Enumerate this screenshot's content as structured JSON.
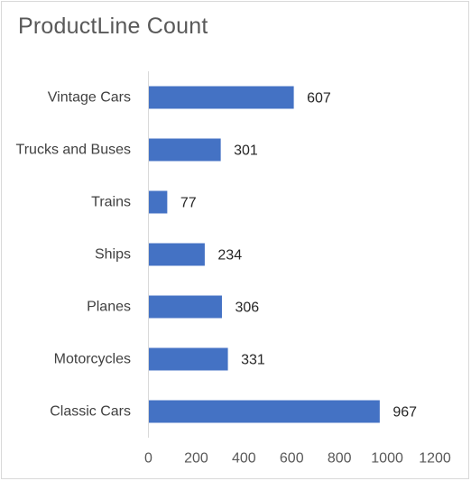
{
  "chart_data": {
    "type": "bar",
    "orientation": "horizontal",
    "title": "ProductLine Count",
    "xlabel": "",
    "ylabel": "",
    "categories": [
      "Vintage Cars",
      "Trucks and Buses",
      "Trains",
      "Ships",
      "Planes",
      "Motorcycles",
      "Classic Cars"
    ],
    "values": [
      607,
      301,
      77,
      234,
      306,
      331,
      967
    ],
    "xlim": [
      0,
      1200
    ],
    "ticks": [
      "0",
      "200",
      "400",
      "600",
      "800",
      "1000",
      "1200"
    ],
    "bar_color": "#4472c4",
    "grid": false,
    "legend": "none",
    "data_labels": true
  }
}
